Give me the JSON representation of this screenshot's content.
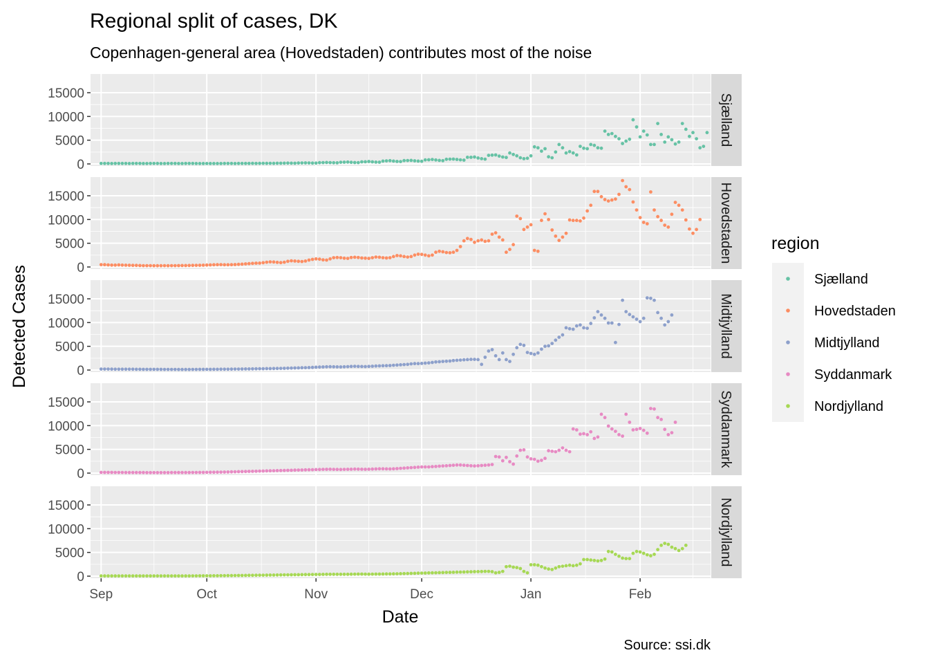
{
  "chart_data": {
    "type": "scatter",
    "title": "Regional split of cases, DK",
    "subtitle": "Copenhagen-general area (Hovedstaden) contributes most of the noise",
    "xlabel": "Date",
    "ylabel": "Detected Cases",
    "caption": "Source: ssi.dk",
    "x_ticks": [
      "Sep",
      "Oct",
      "Nov",
      "Dec",
      "Jan",
      "Feb"
    ],
    "x_tick_dates": [
      "2021-09-01",
      "2021-10-01",
      "2021-11-01",
      "2021-12-01",
      "2022-01-01",
      "2022-02-01"
    ],
    "xlim": [
      "2021-08-29",
      "2022-02-21"
    ],
    "y_ticks": [
      0,
      5000,
      10000,
      15000
    ],
    "ylim": [
      0,
      18500
    ],
    "grid": true,
    "facets": "rows by region",
    "legend": {
      "title": "region",
      "position": "right"
    },
    "colors": {
      "Sjælland": "#66c2a5",
      "Hovedstaden": "#fc8d62",
      "Midtjylland": "#8da0cb",
      "Syddanmark": "#e78ac3",
      "Nordjylland": "#a6d854"
    },
    "x_dates": {
      "start": "2021-09-01",
      "end": "2022-02-15",
      "step": "1 day"
    },
    "series": [
      {
        "name": "Sjælland",
        "values": [
          100,
          100,
          100,
          90,
          100,
          100,
          100,
          100,
          90,
          100,
          100,
          100,
          90,
          90,
          100,
          100,
          100,
          90,
          90,
          100,
          100,
          100,
          90,
          90,
          100,
          100,
          100,
          90,
          90,
          90,
          90,
          90,
          90,
          90,
          90,
          100,
          100,
          100,
          90,
          100,
          100,
          100,
          100,
          110,
          100,
          120,
          130,
          120,
          130,
          110,
          140,
          150,
          160,
          170,
          160,
          140,
          190,
          210,
          220,
          200,
          180,
          170,
          260,
          280,
          310,
          270,
          250,
          230,
          350,
          360,
          390,
          330,
          290,
          280,
          440,
          450,
          510,
          430,
          380,
          360,
          600,
          640,
          680,
          590,
          530,
          500,
          700,
          720,
          750,
          660,
          600,
          560,
          850,
          870,
          930,
          830,
          740,
          690,
          980,
          1000,
          1020,
          940,
          860,
          800,
          1400,
          1400,
          1450,
          1250,
          1100,
          1000,
          1800,
          1850,
          1900,
          1650,
          1450,
          1350,
          2300,
          2000,
          1700,
          1300,
          1100,
          1200,
          1700,
          3600,
          3400,
          2700,
          3200,
          1500,
          1300,
          2500,
          4100,
          3400,
          2300,
          2600,
          2300,
          1900,
          3700,
          3300,
          3200,
          4100,
          3900,
          3400,
          3300,
          6900,
          6200,
          6400,
          5800,
          5300,
          4300,
          4800,
          5200,
          9300,
          7800,
          5700,
          6900,
          6100,
          4100,
          4100,
          8500,
          6200,
          4600,
          5700,
          5100,
          4200,
          4600,
          8500,
          7300,
          5800,
          6600,
          5300,
          3400,
          3700,
          6600
        ]
      },
      {
        "name": "Hovedstaden",
        "values": [
          500,
          480,
          440,
          400,
          400,
          430,
          400,
          380,
          360,
          340,
          330,
          300,
          280,
          280,
          270,
          260,
          260,
          260,
          270,
          260,
          270,
          280,
          290,
          300,
          310,
          320,
          340,
          350,
          370,
          380,
          410,
          440,
          470,
          480,
          500,
          470,
          460,
          480,
          510,
          560,
          600,
          650,
          700,
          760,
          800,
          820,
          900,
          1000,
          1080,
          1050,
          980,
          920,
          1000,
          1200,
          1300,
          1250,
          1200,
          1150,
          1250,
          1450,
          1600,
          1700,
          1650,
          1500,
          1450,
          1700,
          1950,
          2000,
          1950,
          1850,
          1800,
          2000,
          2050,
          2000,
          1900,
          1850,
          1800,
          1950,
          2100,
          2050,
          1950,
          1900,
          1950,
          2200,
          2400,
          2350,
          2200,
          2100,
          2200,
          2500,
          2700,
          2650,
          2500,
          2350,
          2500,
          3100,
          3300,
          3200,
          3050,
          3000,
          3100,
          3500,
          4300,
          5500,
          6000,
          5800,
          5200,
          5500,
          5700,
          5400,
          5500,
          6900,
          7200,
          6300,
          5700,
          3100,
          3700,
          4700,
          10700,
          10200,
          7900,
          8400,
          8900,
          3500,
          3300,
          9800,
          11200,
          10000,
          7800,
          6500,
          5600,
          6300,
          7100,
          9900,
          9800,
          9800,
          9700,
          10300,
          11800,
          13000,
          15900,
          15900,
          14800,
          14200,
          13900,
          14100,
          14300,
          15300,
          18200,
          16900,
          16300,
          13700,
          12000,
          10400,
          9400,
          9100,
          15800,
          12000,
          10600,
          9800,
          8800,
          8400,
          11100,
          13600,
          13000,
          12000,
          9900,
          8000,
          7100,
          7900,
          10000
        ]
      },
      {
        "name": "Midtjylland",
        "values": [
          200,
          200,
          200,
          190,
          180,
          180,
          180,
          170,
          170,
          170,
          160,
          160,
          150,
          150,
          150,
          140,
          140,
          140,
          130,
          130,
          130,
          130,
          120,
          120,
          120,
          120,
          130,
          130,
          140,
          140,
          150,
          150,
          160,
          160,
          170,
          170,
          180,
          190,
          200,
          210,
          220,
          230,
          240,
          250,
          260,
          270,
          280,
          300,
          310,
          320,
          340,
          350,
          370,
          390,
          410,
          430,
          450,
          480,
          500,
          530,
          560,
          590,
          620,
          650,
          680,
          700,
          690,
          670,
          660,
          680,
          720,
          760,
          780,
          760,
          740,
          730,
          760,
          800,
          850,
          880,
          900,
          920,
          950,
          1000,
          1050,
          1100,
          1150,
          1200,
          1300,
          1350,
          1350,
          1400,
          1450,
          1500,
          1600,
          1700,
          1750,
          1800,
          1850,
          1900,
          2000,
          2050,
          2100,
          2150,
          2200,
          2250,
          2250,
          2200,
          1200,
          2700,
          4000,
          4300,
          3000,
          2200,
          3600,
          2200,
          1800,
          3300,
          4700,
          5400,
          5200,
          3700,
          3500,
          3300,
          3600,
          4400,
          5000,
          5100,
          5600,
          6300,
          6900,
          7400,
          8900,
          8700,
          8600,
          9300,
          9500,
          8900,
          8800,
          9800,
          11000,
          12300,
          11600,
          10900,
          9900,
          9900,
          5800,
          9600,
          14700,
          12300,
          11700,
          11200,
          10700,
          10200,
          10900,
          15200,
          15100,
          14700,
          12100,
          10900,
          9500,
          10200,
          11600
        ]
      },
      {
        "name": "Syddanmark",
        "values": [
          150,
          150,
          140,
          140,
          130,
          130,
          130,
          120,
          120,
          120,
          110,
          110,
          110,
          100,
          100,
          100,
          100,
          100,
          100,
          100,
          110,
          110,
          110,
          110,
          120,
          120,
          130,
          130,
          140,
          150,
          160,
          170,
          180,
          190,
          200,
          220,
          240,
          260,
          280,
          300,
          320,
          340,
          360,
          380,
          400,
          420,
          440,
          460,
          480,
          500,
          520,
          540,
          560,
          580,
          600,
          620,
          640,
          660,
          680,
          700,
          720,
          740,
          760,
          780,
          800,
          810,
          790,
          770,
          760,
          780,
          800,
          820,
          840,
          830,
          810,
          800,
          820,
          850,
          880,
          900,
          900,
          890,
          880,
          900,
          950,
          1000,
          1050,
          1100,
          1150,
          1200,
          1250,
          1300,
          1300,
          1300,
          1350,
          1400,
          1450,
          1500,
          1550,
          1600,
          1650,
          1700,
          1700,
          1650,
          1600,
          1550,
          1500,
          1550,
          1600,
          1650,
          1700,
          1800,
          3500,
          3400,
          2600,
          3300,
          2400,
          1900,
          3600,
          4800,
          4900,
          3400,
          3000,
          2900,
          2500,
          2700,
          3100,
          4700,
          4600,
          4500,
          4800,
          5300,
          4800,
          4500,
          9300,
          9100,
          8200,
          8300,
          8100,
          8700,
          7300,
          7600,
          12400,
          11700,
          9900,
          9300,
          8800,
          8100,
          7800,
          12400,
          10700,
          9100,
          9200,
          9400,
          9000,
          8400,
          13600,
          13500,
          11700,
          11300,
          9200,
          8100,
          8500,
          10700
        ]
      },
      {
        "name": "Nordjylland",
        "values": [
          50,
          50,
          50,
          50,
          50,
          50,
          50,
          50,
          50,
          50,
          50,
          50,
          50,
          50,
          50,
          50,
          50,
          50,
          50,
          50,
          50,
          50,
          50,
          50,
          50,
          50,
          60,
          60,
          70,
          70,
          80,
          80,
          90,
          90,
          100,
          100,
          110,
          120,
          130,
          140,
          150,
          160,
          170,
          180,
          190,
          200,
          210,
          220,
          230,
          240,
          250,
          260,
          270,
          280,
          290,
          300,
          310,
          320,
          330,
          340,
          350,
          360,
          370,
          380,
          390,
          400,
          400,
          400,
          390,
          390,
          400,
          410,
          420,
          430,
          430,
          420,
          410,
          420,
          430,
          440,
          450,
          460,
          470,
          480,
          500,
          520,
          540,
          560,
          580,
          600,
          620,
          640,
          660,
          680,
          700,
          720,
          740,
          760,
          780,
          800,
          820,
          840,
          860,
          880,
          900,
          920,
          940,
          960,
          980,
          1000,
          1000,
          950,
          700,
          800,
          1000,
          2000,
          2100,
          1900,
          1800,
          1600,
          1000,
          700,
          2400,
          2400,
          2300,
          2000,
          1700,
          1500,
          1400,
          1700,
          2000,
          2100,
          2200,
          2300,
          2200,
          2300,
          2600,
          3500,
          3500,
          3400,
          3300,
          3200,
          3300,
          3600,
          5200,
          5100,
          4600,
          4200,
          3800,
          3700,
          3700,
          4800,
          5200,
          5100,
          4800,
          4500,
          4300,
          4600,
          5600,
          6500,
          6900,
          6700,
          6100,
          5800,
          5400,
          5800,
          6500
        ]
      }
    ]
  }
}
